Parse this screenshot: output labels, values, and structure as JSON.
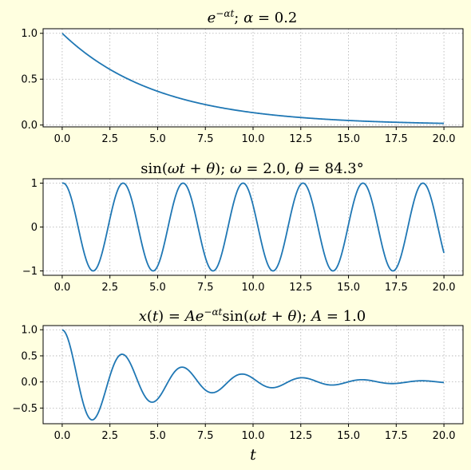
{
  "figure": {
    "background": "#ffffe0",
    "line_color": "#1f77b4"
  },
  "chart_data": [
    {
      "type": "line",
      "title": "e^{-αt};   α = 0.2",
      "formula": "exp",
      "params": {
        "alpha": 0.2
      },
      "x_range": [
        0,
        20
      ],
      "xlim": [
        -1,
        21
      ],
      "ylim": [
        -0.02,
        1.05
      ],
      "xticks": [
        0.0,
        2.5,
        5.0,
        7.5,
        10.0,
        12.5,
        15.0,
        17.5,
        20.0
      ],
      "xtick_labels": [
        "0.0",
        "2.5",
        "5.0",
        "7.5",
        "10.0",
        "12.5",
        "15.0",
        "17.5",
        "20.0"
      ],
      "yticks": [
        0.0,
        0.5,
        1.0
      ],
      "ytick_labels": [
        "0.0",
        "0.5",
        "1.0"
      ],
      "xlabel": "",
      "grid": true
    },
    {
      "type": "line",
      "title": "sin(ωt + θ);   ω = 2.0, θ = 84.3°",
      "formula": "sin",
      "params": {
        "omega": 2.0,
        "theta_deg": 84.3
      },
      "x_range": [
        0,
        20
      ],
      "xlim": [
        -1,
        21
      ],
      "ylim": [
        -1.1,
        1.1
      ],
      "xticks": [
        0.0,
        2.5,
        5.0,
        7.5,
        10.0,
        12.5,
        15.0,
        17.5,
        20.0
      ],
      "xtick_labels": [
        "0.0",
        "2.5",
        "5.0",
        "7.5",
        "10.0",
        "12.5",
        "15.0",
        "17.5",
        "20.0"
      ],
      "yticks": [
        -1,
        0,
        1
      ],
      "ytick_labels": [
        "−1",
        "0",
        "1"
      ],
      "xlabel": "",
      "grid": true
    },
    {
      "type": "line",
      "title": "x(t) = Ae^{-αt}sin(ωt + θ);   A = 1.0",
      "formula": "damped",
      "params": {
        "A": 1.0,
        "alpha": 0.2,
        "omega": 2.0,
        "theta_deg": 84.3
      },
      "x_range": [
        0,
        20
      ],
      "xlim": [
        -1,
        21
      ],
      "ylim": [
        -0.8,
        1.08
      ],
      "xticks": [
        0.0,
        2.5,
        5.0,
        7.5,
        10.0,
        12.5,
        15.0,
        17.5,
        20.0
      ],
      "xtick_labels": [
        "0.0",
        "2.5",
        "5.0",
        "7.5",
        "10.0",
        "12.5",
        "15.0",
        "17.5",
        "20.0"
      ],
      "yticks": [
        -0.5,
        0.0,
        0.5,
        1.0
      ],
      "ytick_labels": [
        "−0.5",
        "0.0",
        "0.5",
        "1.0"
      ],
      "xlabel": "t",
      "grid": true
    }
  ]
}
